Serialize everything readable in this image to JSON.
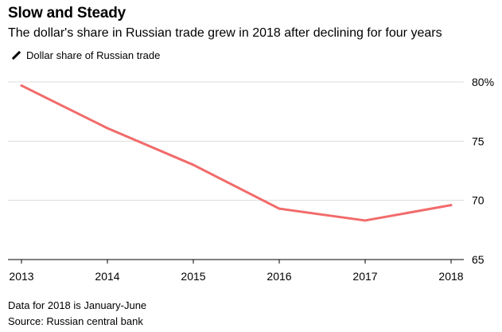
{
  "chart_data": {
    "type": "line",
    "title": "Slow and Steady",
    "subtitle": "The dollar's share in Russian trade grew in 2018 after declining for four years",
    "x": [
      "2013",
      "2014",
      "2015",
      "2016",
      "2017",
      "2018"
    ],
    "series": [
      {
        "name": "Dollar share of Russian trade",
        "color": "#f26b6b",
        "values": [
          79.7,
          76.1,
          73.0,
          69.3,
          68.3,
          69.6
        ]
      }
    ],
    "ylim": [
      65,
      80
    ],
    "yticks": [
      65,
      70,
      75,
      80
    ],
    "ytick_labels": [
      "65",
      "70",
      "75",
      "80%"
    ],
    "grid": true,
    "legend_position": "top-left",
    "notes": [
      "Data for 2018 is January-June",
      "Source: Russian central bank"
    ]
  }
}
